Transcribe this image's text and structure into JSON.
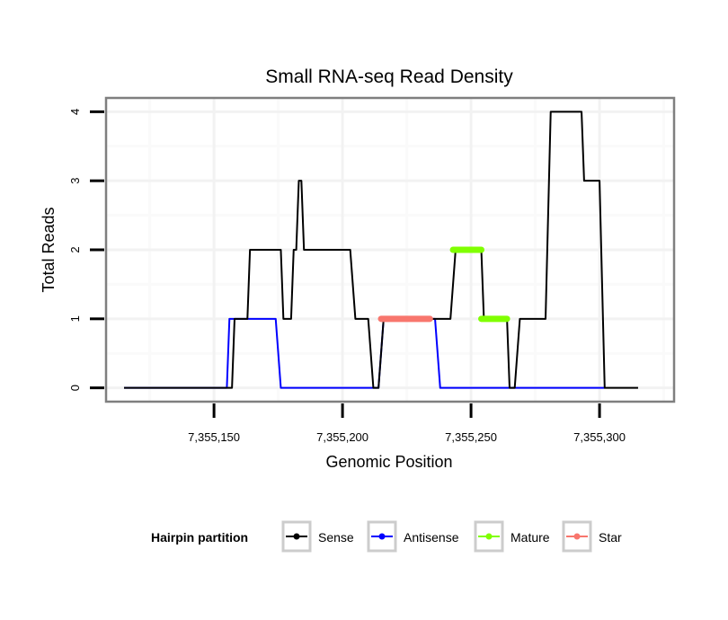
{
  "chart_data": {
    "type": "line",
    "title": "Small RNA-seq Read Density",
    "xlabel": "Genomic Position",
    "ylabel": "Total Reads",
    "xlim": [
      7355108,
      7355329
    ],
    "ylim": [
      -0.2,
      4.2
    ],
    "x_ticks": [
      7355150,
      7355200,
      7355250,
      7355300
    ],
    "x_tick_labels": [
      "7,355,150",
      "7,355,200",
      "7,355,250",
      "7,355,300"
    ],
    "y_ticks": [
      0,
      1,
      2,
      3,
      4
    ],
    "y_tick_labels": [
      "0",
      "1",
      "2",
      "3",
      "4"
    ],
    "grid": true,
    "legend": {
      "title": "Hairpin partition",
      "position": "bottom",
      "entries": [
        "Sense",
        "Antisense",
        "Mature",
        "Star"
      ]
    },
    "series": [
      {
        "name": "Sense",
        "color": "#000000",
        "x": [
          7355115,
          7355157,
          7355158,
          7355163,
          7355164,
          7355176,
          7355177,
          7355180,
          7355181,
          7355182,
          7355183,
          7355184,
          7355185,
          7355203,
          7355205,
          7355210,
          7355212,
          7355214,
          7355216,
          7355242,
          7355244,
          7355254,
          7355255,
          7355264,
          7355265,
          7355267,
          7355269,
          7355279,
          7355281,
          7355293,
          7355294,
          7355300,
          7355302,
          7355315
        ],
        "y": [
          0,
          0,
          1,
          1,
          2,
          2,
          1,
          1,
          2,
          2,
          3,
          3,
          2,
          2,
          1,
          1,
          0,
          0,
          1,
          1,
          2,
          2,
          1,
          1,
          0,
          0,
          1,
          1,
          4,
          4,
          3,
          3,
          0,
          0
        ]
      },
      {
        "name": "Antisense",
        "color": "#0000ff",
        "x": [
          7355115,
          7355155,
          7355156,
          7355174,
          7355176,
          7355214,
          7355216,
          7355236,
          7355238,
          7355302
        ],
        "y": [
          0,
          0,
          1,
          1,
          0,
          0,
          1,
          1,
          0,
          0
        ]
      },
      {
        "name": "Mature",
        "color": "#80ff00",
        "segments": [
          {
            "x": [
              7355243,
              7355254
            ],
            "y": [
              2,
              2
            ]
          },
          {
            "x": [
              7355254,
              7355264
            ],
            "y": [
              1,
              1
            ]
          }
        ]
      },
      {
        "name": "Star",
        "color": "#f8766d",
        "segments": [
          {
            "x": [
              7355215,
              7355234
            ],
            "y": [
              1,
              1
            ]
          }
        ]
      }
    ]
  }
}
